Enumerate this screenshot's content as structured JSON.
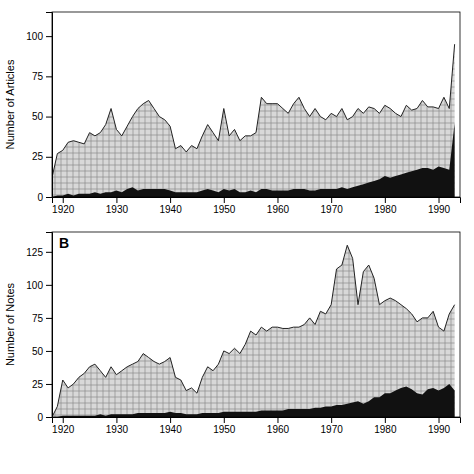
{
  "chart_data": [
    {
      "type": "area",
      "y_label": "Number of Articles",
      "x": [
        1918,
        1919,
        1920,
        1921,
        1922,
        1923,
        1924,
        1925,
        1926,
        1927,
        1928,
        1929,
        1930,
        1931,
        1932,
        1933,
        1934,
        1935,
        1936,
        1937,
        1938,
        1939,
        1940,
        1941,
        1942,
        1943,
        1944,
        1945,
        1946,
        1947,
        1948,
        1949,
        1950,
        1951,
        1952,
        1953,
        1954,
        1955,
        1956,
        1957,
        1958,
        1959,
        1960,
        1961,
        1962,
        1963,
        1964,
        1965,
        1966,
        1967,
        1968,
        1969,
        1970,
        1971,
        1972,
        1973,
        1974,
        1975,
        1976,
        1977,
        1978,
        1979,
        1980,
        1981,
        1982,
        1983,
        1984,
        1985,
        1986,
        1987,
        1988,
        1989,
        1990,
        1991,
        1992,
        1993
      ],
      "series": [
        {
          "color": "#d8d8d8",
          "values": [
            12,
            27,
            29,
            34,
            35,
            34,
            33,
            40,
            38,
            40,
            45,
            55,
            42,
            38,
            44,
            50,
            55,
            58,
            60,
            55,
            50,
            48,
            44,
            30,
            32,
            28,
            32,
            30,
            38,
            45,
            40,
            35,
            55,
            38,
            42,
            35,
            38,
            38,
            40,
            62,
            58,
            58,
            58,
            55,
            52,
            58,
            62,
            55,
            50,
            55,
            50,
            48,
            52,
            50,
            55,
            48,
            50,
            55,
            52,
            56,
            55,
            52,
            57,
            55,
            52,
            50,
            57,
            54,
            55,
            60,
            56,
            56,
            55,
            62,
            55,
            95
          ]
        },
        {
          "color": "#111111",
          "values": [
            0,
            1,
            1,
            2,
            1,
            2,
            2,
            2,
            3,
            2,
            3,
            3,
            4,
            3,
            5,
            6,
            4,
            5,
            5,
            5,
            5,
            5,
            4,
            3,
            3,
            3,
            3,
            3,
            4,
            5,
            4,
            3,
            5,
            4,
            5,
            3,
            3,
            4,
            3,
            5,
            5,
            4,
            4,
            4,
            4,
            5,
            5,
            5,
            4,
            4,
            5,
            5,
            5,
            5,
            6,
            5,
            6,
            7,
            8,
            9,
            10,
            11,
            13,
            12,
            13,
            14,
            15,
            16,
            17,
            18,
            18,
            17,
            19,
            18,
            17,
            46
          ]
        }
      ],
      "xlim": [
        1918,
        1994
      ],
      "xticks": [
        1920,
        1930,
        1940,
        1950,
        1960,
        1970,
        1980,
        1990
      ],
      "ylim": [
        0,
        115
      ],
      "yticks": [
        0,
        25,
        50,
        75,
        100
      ]
    },
    {
      "type": "area",
      "y_label": "Number of Notes",
      "annotations": [
        "B"
      ],
      "x": [
        1918,
        1919,
        1920,
        1921,
        1922,
        1923,
        1924,
        1925,
        1926,
        1927,
        1928,
        1929,
        1930,
        1931,
        1932,
        1933,
        1934,
        1935,
        1936,
        1937,
        1938,
        1939,
        1940,
        1941,
        1942,
        1943,
        1944,
        1945,
        1946,
        1947,
        1948,
        1949,
        1950,
        1951,
        1952,
        1953,
        1954,
        1955,
        1956,
        1957,
        1958,
        1959,
        1960,
        1961,
        1962,
        1963,
        1964,
        1965,
        1966,
        1967,
        1968,
        1969,
        1970,
        1971,
        1972,
        1973,
        1974,
        1975,
        1976,
        1977,
        1978,
        1979,
        1980,
        1981,
        1982,
        1983,
        1984,
        1985,
        1986,
        1987,
        1988,
        1989,
        1990,
        1991,
        1992,
        1993
      ],
      "series": [
        {
          "color": "#d8d8d8",
          "values": [
            0,
            8,
            28,
            22,
            25,
            30,
            33,
            38,
            40,
            35,
            30,
            38,
            32,
            35,
            38,
            40,
            42,
            48,
            45,
            42,
            40,
            42,
            45,
            30,
            28,
            20,
            22,
            18,
            30,
            38,
            35,
            40,
            50,
            48,
            52,
            48,
            55,
            65,
            62,
            68,
            65,
            68,
            68,
            67,
            67,
            68,
            68,
            70,
            75,
            70,
            80,
            78,
            85,
            112,
            115,
            130,
            120,
            85,
            110,
            115,
            105,
            85,
            88,
            90,
            88,
            85,
            82,
            78,
            72,
            75,
            75,
            80,
            68,
            65,
            78,
            85
          ]
        },
        {
          "color": "#111111",
          "values": [
            0,
            0,
            1,
            1,
            1,
            1,
            1,
            1,
            1,
            2,
            1,
            2,
            2,
            2,
            2,
            2,
            3,
            3,
            3,
            3,
            3,
            3,
            4,
            3,
            3,
            2,
            2,
            2,
            3,
            3,
            3,
            3,
            4,
            4,
            4,
            4,
            4,
            4,
            4,
            5,
            5,
            5,
            5,
            5,
            6,
            6,
            6,
            6,
            6,
            7,
            7,
            8,
            8,
            9,
            9,
            10,
            11,
            12,
            10,
            12,
            15,
            15,
            18,
            18,
            20,
            22,
            23,
            21,
            18,
            17,
            21,
            22,
            20,
            22,
            25,
            20
          ]
        }
      ],
      "xlim": [
        1918,
        1994
      ],
      "xticks": [
        1920,
        1930,
        1940,
        1950,
        1960,
        1970,
        1980,
        1990
      ],
      "ylim": [
        0,
        140
      ],
      "yticks": [
        0,
        25,
        50,
        75,
        100,
        125
      ]
    }
  ]
}
